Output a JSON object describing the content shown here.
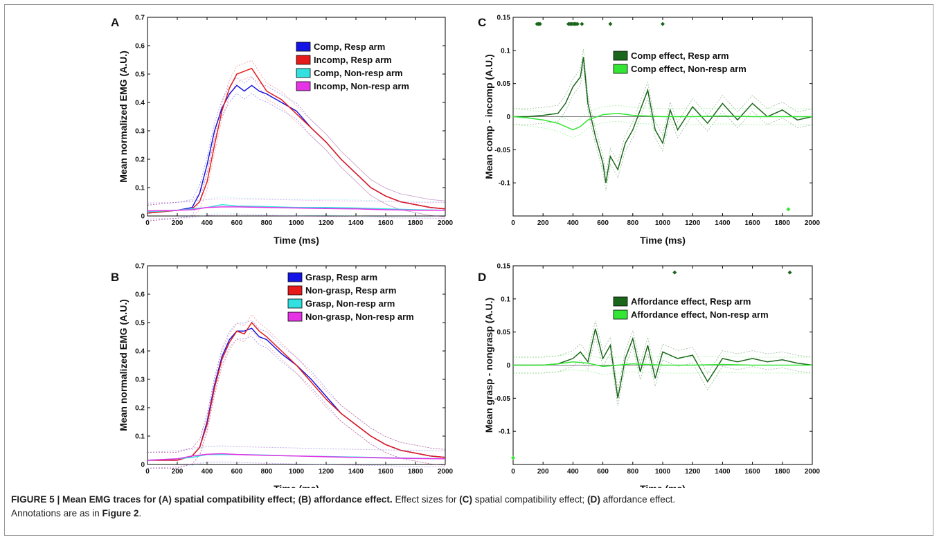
{
  "caption": {
    "figure_label": "FIGURE 5 | Mean EMG traces for (A) spatial compatibility effect; (B) affordance effect.",
    "effect_intro": " Effect sizes for ",
    "c_tag": "(C)",
    "c_text": " spatial compatibility effect; ",
    "d_tag": "(D)",
    "d_text": " affordance effect.",
    "annotations_prefix": "Annotations are as in ",
    "figure_ref": "Figure 2",
    "annotations_suffix": "."
  },
  "colors": {
    "blue": "#1414e6",
    "red": "#e61a1a",
    "cyan": "#33e0e0",
    "magenta": "#e633e6",
    "dark_green": "#1a661a",
    "light_green": "#33e633"
  },
  "chart_data": [
    {
      "panel": "A",
      "type": "line",
      "xlabel": "Time (ms)",
      "ylabel": "Mean normalized EMG (A.U.)",
      "xlim": [
        0,
        2000
      ],
      "ylim": [
        0,
        0.7
      ],
      "xticks": [
        "0",
        "200",
        "400",
        "600",
        "800",
        "1000",
        "1200",
        "1400",
        "1600",
        "1800",
        "2000"
      ],
      "yticks": [
        "0",
        "0.1",
        "0.2",
        "0.3",
        "0.4",
        "0.5",
        "0.6",
        "0.7"
      ],
      "legend_position": "top-right",
      "series": [
        {
          "name": "Comp, Resp arm",
          "color": "#1414e6",
          "x": [
            0,
            200,
            300,
            350,
            400,
            450,
            500,
            550,
            600,
            650,
            700,
            750,
            800,
            900,
            1000,
            1100,
            1200,
            1300,
            1400,
            1500,
            1600,
            1700,
            1800,
            1900,
            2000
          ],
          "y": [
            0.01,
            0.02,
            0.03,
            0.08,
            0.18,
            0.3,
            0.38,
            0.43,
            0.46,
            0.44,
            0.46,
            0.44,
            0.43,
            0.4,
            0.37,
            0.31,
            0.26,
            0.2,
            0.15,
            0.1,
            0.07,
            0.05,
            0.04,
            0.03,
            0.025
          ]
        },
        {
          "name": "Incomp, Resp arm",
          "color": "#e61a1a",
          "x": [
            0,
            200,
            300,
            350,
            400,
            450,
            500,
            550,
            600,
            650,
            700,
            750,
            800,
            900,
            1000,
            1100,
            1200,
            1300,
            1400,
            1500,
            1600,
            1700,
            1800,
            1900,
            2000
          ],
          "y": [
            0.01,
            0.02,
            0.025,
            0.05,
            0.12,
            0.25,
            0.37,
            0.45,
            0.5,
            0.51,
            0.52,
            0.48,
            0.44,
            0.41,
            0.36,
            0.31,
            0.26,
            0.2,
            0.15,
            0.1,
            0.07,
            0.05,
            0.04,
            0.03,
            0.025
          ]
        },
        {
          "name": "Comp, Non-resp arm",
          "color": "#33e0e0",
          "x": [
            0,
            200,
            300,
            400,
            500,
            600,
            800,
            1000,
            1200,
            1400,
            1600,
            1800,
            2000
          ],
          "y": [
            0.015,
            0.02,
            0.025,
            0.03,
            0.04,
            0.035,
            0.033,
            0.03,
            0.03,
            0.028,
            0.025,
            0.022,
            0.02
          ]
        },
        {
          "name": "Incomp, Non-resp arm",
          "color": "#e633e6",
          "x": [
            0,
            200,
            300,
            400,
            500,
            600,
            800,
            1000,
            1200,
            1400,
            1600,
            1800,
            2000
          ],
          "y": [
            0.018,
            0.02,
            0.022,
            0.03,
            0.032,
            0.032,
            0.03,
            0.028,
            0.026,
            0.025,
            0.022,
            0.02,
            0.02
          ]
        }
      ]
    },
    {
      "panel": "B",
      "type": "line",
      "xlabel": "Time (ms)",
      "ylabel": "Mean normalized EMG (A.U.)",
      "xlim": [
        0,
        2000
      ],
      "ylim": [
        0,
        0.7
      ],
      "xticks": [
        "0",
        "200",
        "400",
        "600",
        "800",
        "1000",
        "1200",
        "1400",
        "1600",
        "1800",
        "2000"
      ],
      "yticks": [
        "0",
        "0.1",
        "0.2",
        "0.3",
        "0.4",
        "0.5",
        "0.6",
        "0.7"
      ],
      "legend_position": "top-right",
      "series": [
        {
          "name": "Grasp, Resp arm",
          "color": "#1414e6",
          "x": [
            0,
            200,
            300,
            350,
            400,
            450,
            500,
            550,
            600,
            650,
            700,
            750,
            800,
            900,
            1000,
            1100,
            1200,
            1300,
            1400,
            1500,
            1600,
            1700,
            1800,
            1900,
            2000
          ],
          "y": [
            0.015,
            0.015,
            0.03,
            0.06,
            0.15,
            0.28,
            0.38,
            0.44,
            0.47,
            0.47,
            0.48,
            0.45,
            0.44,
            0.39,
            0.35,
            0.3,
            0.24,
            0.18,
            0.14,
            0.1,
            0.07,
            0.05,
            0.04,
            0.03,
            0.025
          ]
        },
        {
          "name": "Non-grasp, Resp arm",
          "color": "#e61a1a",
          "x": [
            0,
            200,
            300,
            350,
            400,
            450,
            500,
            550,
            600,
            650,
            700,
            750,
            800,
            900,
            1000,
            1100,
            1200,
            1300,
            1400,
            1500,
            1600,
            1700,
            1800,
            1900,
            2000
          ],
          "y": [
            0.015,
            0.015,
            0.03,
            0.06,
            0.14,
            0.27,
            0.37,
            0.43,
            0.47,
            0.46,
            0.5,
            0.47,
            0.45,
            0.4,
            0.35,
            0.29,
            0.23,
            0.18,
            0.14,
            0.1,
            0.07,
            0.05,
            0.04,
            0.03,
            0.025
          ]
        },
        {
          "name": "Grasp, Non-resp arm",
          "color": "#33e0e0",
          "x": [
            0,
            200,
            300,
            400,
            500,
            600,
            800,
            1000,
            1200,
            1400,
            1600,
            1800,
            2000
          ],
          "y": [
            0.015,
            0.02,
            0.025,
            0.035,
            0.035,
            0.035,
            0.033,
            0.03,
            0.028,
            0.026,
            0.024,
            0.022,
            0.02
          ]
        },
        {
          "name": "Non-grasp, Non-resp arm",
          "color": "#e633e6",
          "x": [
            0,
            200,
            300,
            400,
            500,
            600,
            800,
            1000,
            1200,
            1400,
            1600,
            1800,
            2000
          ],
          "y": [
            0.015,
            0.02,
            0.03,
            0.036,
            0.038,
            0.035,
            0.032,
            0.03,
            0.027,
            0.025,
            0.023,
            0.021,
            0.02
          ]
        }
      ]
    },
    {
      "panel": "C",
      "type": "line",
      "xlabel": "Time (ms)",
      "ylabel": "Mean comp - incomp (A.U.)",
      "xlim": [
        0,
        2000
      ],
      "ylim": [
        -0.15,
        0.15
      ],
      "xticks": [
        "0",
        "200",
        "400",
        "600",
        "800",
        "1000",
        "1200",
        "1400",
        "1600",
        "1800",
        "2000"
      ],
      "yticks": [
        "-0.1",
        "-0.05",
        "0",
        "0.05",
        "0.1",
        "0.15"
      ],
      "legend_position": "top-right",
      "series": [
        {
          "name": "Comp effect, Resp arm",
          "color": "#1a661a",
          "x": [
            0,
            100,
            200,
            300,
            350,
            400,
            450,
            470,
            500,
            550,
            600,
            620,
            650,
            700,
            750,
            800,
            850,
            900,
            950,
            1000,
            1050,
            1100,
            1200,
            1300,
            1400,
            1500,
            1600,
            1700,
            1800,
            1900,
            2000
          ],
          "y": [
            0,
            0,
            0.002,
            0.005,
            0.02,
            0.045,
            0.06,
            0.09,
            0.02,
            -0.03,
            -0.07,
            -0.1,
            -0.06,
            -0.08,
            -0.04,
            -0.02,
            0.01,
            0.04,
            -0.02,
            -0.04,
            0.01,
            -0.02,
            0.015,
            -0.01,
            0.02,
            -0.005,
            0.02,
            0,
            0.01,
            -0.005,
            0
          ]
        },
        {
          "name": "Comp effect, Non-resp arm",
          "color": "#33e633",
          "x": [
            0,
            100,
            200,
            300,
            400,
            450,
            500,
            600,
            700,
            800,
            1000,
            1200,
            1400,
            1600,
            1800,
            2000
          ],
          "y": [
            0,
            -0.002,
            -0.005,
            -0.01,
            -0.02,
            -0.015,
            -0.005,
            0.003,
            0.005,
            0.002,
            0,
            0,
            0.001,
            0,
            0,
            0
          ]
        }
      ],
      "sig_markers": [
        {
          "series": "Comp effect, Resp arm",
          "y": 0.14,
          "x": [
            160,
            170,
            180,
            370,
            380,
            390,
            400,
            410,
            420,
            430,
            460,
            650,
            1000
          ]
        },
        {
          "series": "Comp effect, Non-resp arm",
          "y": -0.14,
          "x": [
            1840
          ]
        }
      ]
    },
    {
      "panel": "D",
      "type": "line",
      "xlabel": "Time (ms)",
      "ylabel": "Mean grasp - nongrasp (A.U.)",
      "xlim": [
        0,
        2000
      ],
      "ylim": [
        -0.15,
        0.15
      ],
      "xticks": [
        "0",
        "200",
        "400",
        "600",
        "800",
        "1000",
        "1200",
        "1400",
        "1600",
        "1800",
        "2000"
      ],
      "yticks": [
        "-0.1",
        "-0.05",
        "0",
        "0.05",
        "0.1",
        "0.15"
      ],
      "legend_position": "top-right",
      "series": [
        {
          "name": "Affordance effect, Resp arm",
          "color": "#1a661a",
          "x": [
            0,
            200,
            300,
            400,
            450,
            500,
            550,
            600,
            650,
            700,
            750,
            800,
            850,
            900,
            950,
            1000,
            1100,
            1200,
            1300,
            1400,
            1500,
            1600,
            1700,
            1800,
            1900,
            2000
          ],
          "y": [
            0,
            0,
            0.002,
            0.01,
            0.02,
            0.005,
            0.055,
            0.01,
            0.03,
            -0.05,
            0.01,
            0.04,
            -0.01,
            0.03,
            -0.02,
            0.02,
            0.01,
            0.015,
            -0.025,
            0.01,
            0.005,
            0.01,
            0.005,
            0.008,
            0.003,
            0
          ]
        },
        {
          "name": "Affordance effect, Non-resp arm",
          "color": "#33e633",
          "x": [
            0,
            200,
            300,
            400,
            500,
            600,
            800,
            1000,
            1200,
            1400,
            1600,
            1800,
            2000
          ],
          "y": [
            0,
            0,
            0.002,
            0.005,
            0.003,
            -0.002,
            0.002,
            0,
            0,
            0.001,
            0,
            0,
            0
          ]
        }
      ],
      "sig_markers": [
        {
          "series": "Affordance effect, Resp arm",
          "y": 0.14,
          "x": [
            1080,
            1850
          ]
        },
        {
          "series": "Affordance effect, Non-resp arm",
          "y": -0.14,
          "x": [
            0
          ]
        }
      ]
    }
  ]
}
